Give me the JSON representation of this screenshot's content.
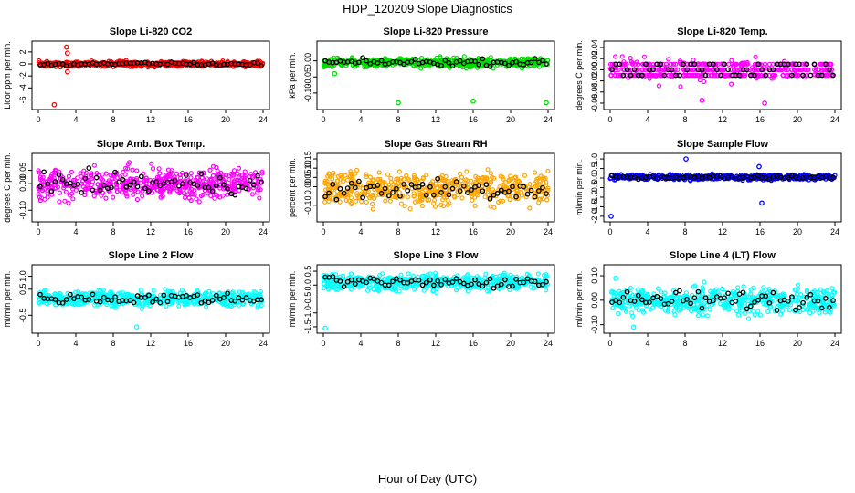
{
  "title": "HDP_120209  Slope Diagnostics",
  "xlabel": "Hour of Day (UTC)",
  "colors": {
    "co2": "#ff0000",
    "pressure": "#00dd00",
    "temp": "#ff00ff",
    "rh": "#ffa500",
    "flow": "#0000ff",
    "line": "#00ffff",
    "hourly": "#000000"
  },
  "chart_data": [
    {
      "type": "scatter",
      "title": "Slope Li-820 CO2",
      "ylabel": "Licor ppm per min.",
      "color": "#ff0000",
      "x_ticks": [
        "0",
        "4",
        "8",
        "12",
        "16",
        "20",
        "24"
      ],
      "y_ticks": [
        "-6",
        "-4",
        "-2",
        "0",
        "2"
      ],
      "ylim": [
        -7,
        3.2
      ],
      "xlim": [
        0,
        24
      ],
      "outliers": [
        {
          "x": 1.7,
          "y": -6.8
        },
        {
          "x": 3.0,
          "y": 2.8
        },
        {
          "x": 3.1,
          "y": 1.8
        },
        {
          "x": 3.1,
          "y": -1.3
        }
      ]
    },
    {
      "type": "scatter",
      "title": "Slope Li-820 Pressure",
      "ylabel": "kPa per min.",
      "color": "#00dd00",
      "x_ticks": [
        "0",
        "4",
        "8",
        "12",
        "16",
        "20",
        "24"
      ],
      "y_ticks": [
        "-0.10",
        "-0.05",
        "0.00"
      ],
      "ylim": [
        -0.14,
        0.05
      ],
      "xlim": [
        0,
        24
      ],
      "outliers": [
        {
          "x": 8.0,
          "y": -0.13
        },
        {
          "x": 16.0,
          "y": -0.125
        },
        {
          "x": 23.8,
          "y": -0.13
        },
        {
          "x": 1.2,
          "y": -0.04
        }
      ]
    },
    {
      "type": "scatter",
      "title": "Slope Li-820 Temp.",
      "ylabel": "degrees C per min.",
      "color": "#ff00ff",
      "x_ticks": [
        "0",
        "4",
        "8",
        "12",
        "16",
        "20",
        "24"
      ],
      "y_ticks": [
        "-0.06",
        "-0.04",
        "-0.02",
        "0.00",
        "0.02",
        "0.04"
      ],
      "ylim": [
        -0.065,
        0.045
      ],
      "xlim": [
        0,
        24
      ],
      "outliers": [
        {
          "x": 9.8,
          "y": -0.055
        },
        {
          "x": 16.5,
          "y": -0.06
        }
      ]
    },
    {
      "type": "scatter",
      "title": "Slope Amb. Box Temp.",
      "ylabel": "degrees C per min.",
      "color": "#ff00ff",
      "x_ticks": [
        "0",
        "4",
        "8",
        "12",
        "16",
        "20",
        "24"
      ],
      "y_ticks": [
        "-0.10",
        "0.00",
        "0.05"
      ],
      "ylim": [
        -0.13,
        0.1
      ],
      "xlim": [
        0,
        24
      ],
      "outliers": []
    },
    {
      "type": "scatter",
      "title": "Slope Gas Stream RH",
      "ylabel": "percent per min.",
      "color": "#ffa500",
      "x_ticks": [
        "0",
        "4",
        "8",
        "12",
        "16",
        "20",
        "24"
      ],
      "y_ticks": [
        "-0.10",
        "0.00",
        "0.05",
        "0.10",
        "0.15"
      ],
      "ylim": [
        -0.17,
        0.16
      ],
      "xlim": [
        0,
        24
      ],
      "outliers": []
    },
    {
      "type": "scatter",
      "title": "Slope Sample Flow",
      "ylabel": "ml/min per min.",
      "color": "#0000ff",
      "x_ticks": [
        "0",
        "4",
        "8",
        "12",
        "16",
        "20",
        "24"
      ],
      "y_ticks": [
        "-2.0",
        "-1.5",
        "-1.0",
        "-0.5",
        "0.0",
        "0.5",
        "1.0"
      ],
      "ylim": [
        -2.1,
        1.1
      ],
      "xlim": [
        0,
        24
      ],
      "outliers": [
        {
          "x": 0.1,
          "y": -2.0
        },
        {
          "x": 8.1,
          "y": 1.0
        },
        {
          "x": 16.2,
          "y": -1.3
        },
        {
          "x": 15.9,
          "y": 0.6
        }
      ]
    },
    {
      "type": "scatter",
      "title": "Slope Line 2 Flow",
      "ylabel": "ml/min per min.",
      "color": "#00ffff",
      "x_ticks": [
        "0",
        "4",
        "8",
        "12",
        "16",
        "20",
        "24"
      ],
      "y_ticks": [
        "-0.5",
        "0.5",
        "1.0"
      ],
      "ylim": [
        -1.05,
        1.3
      ],
      "xlim": [
        0,
        24
      ],
      "outliers": [
        {
          "x": 10.5,
          "y": -0.95
        }
      ]
    },
    {
      "type": "scatter",
      "title": "Slope Line 3 Flow",
      "ylabel": "ml/min per min.",
      "color": "#00ffff",
      "x_ticks": [
        "0",
        "4",
        "8",
        "12",
        "16",
        "20",
        "24"
      ],
      "y_ticks": [
        "-1.5",
        "-1.0",
        "-0.5",
        "0.0",
        "0.5"
      ],
      "ylim": [
        -1.6,
        0.6
      ],
      "xlim": [
        0,
        24
      ],
      "outliers": [
        {
          "x": 0.2,
          "y": -1.55
        }
      ]
    },
    {
      "type": "scatter",
      "title": "Slope Line 4 (LT) Flow",
      "ylabel": "ml/min per min.",
      "color": "#00ffff",
      "x_ticks": [
        "0",
        "4",
        "8",
        "12",
        "16",
        "20",
        "24"
      ],
      "y_ticks": [
        "-0.10",
        "0.00",
        "0.10"
      ],
      "ylim": [
        -0.12,
        0.13
      ],
      "xlim": [
        0,
        24
      ],
      "outliers": [
        {
          "x": 0.6,
          "y": 0.09
        },
        {
          "x": 2.5,
          "y": -0.11
        }
      ]
    }
  ]
}
